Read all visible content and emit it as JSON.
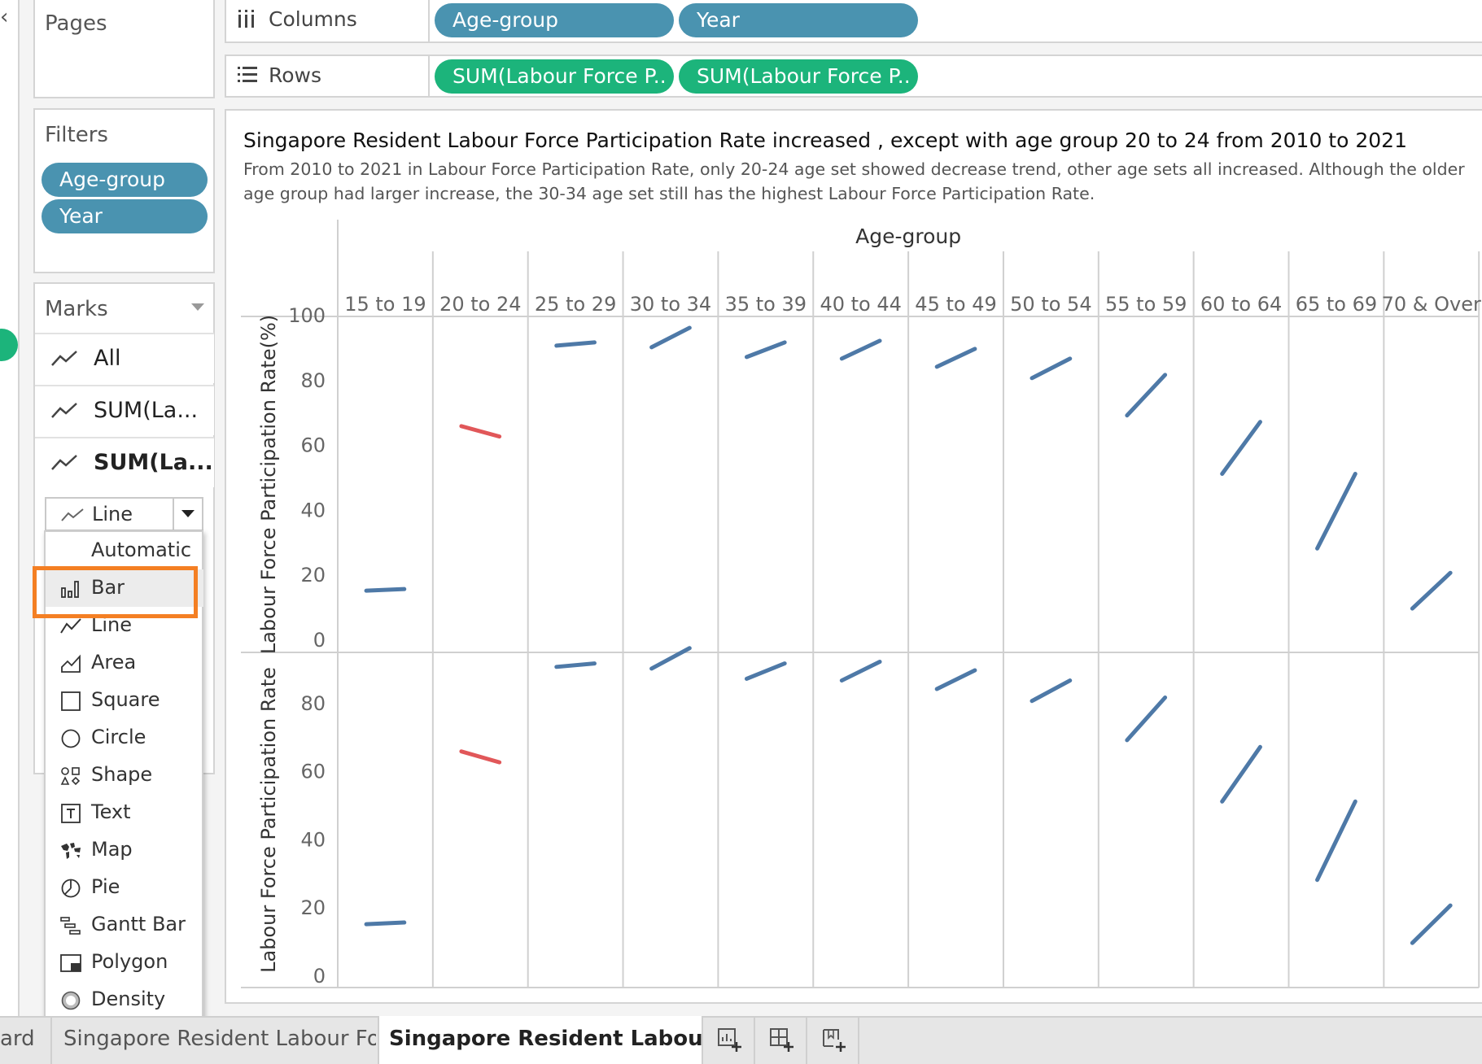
{
  "shelves": {
    "pages_label": "Pages",
    "columns_label": "Columns",
    "columns_pills": [
      "Age-group",
      "Year"
    ],
    "rows_label": "Rows",
    "rows_pills": [
      "SUM(Labour Force P..",
      "SUM(Labour Force P.."
    ]
  },
  "filters": {
    "label": "Filters",
    "pills": [
      "Age-group",
      "Year"
    ]
  },
  "marks": {
    "label": "Marks",
    "cards": [
      "All",
      "SUM(La...",
      "SUM(La..."
    ],
    "mark_type": "Line",
    "dropdown_items": [
      {
        "label": "Automatic",
        "icon": "none-icon"
      },
      {
        "label": "Bar",
        "icon": "bar-icon"
      },
      {
        "label": "Line",
        "icon": "line-icon"
      },
      {
        "label": "Area",
        "icon": "area-icon"
      },
      {
        "label": "Square",
        "icon": "square-icon"
      },
      {
        "label": "Circle",
        "icon": "circle-icon"
      },
      {
        "label": "Shape",
        "icon": "shape-icon"
      },
      {
        "label": "Text",
        "icon": "text-icon"
      },
      {
        "label": "Map",
        "icon": "map-icon"
      },
      {
        "label": "Pie",
        "icon": "pie-icon"
      },
      {
        "label": "Gantt Bar",
        "icon": "gantt-icon"
      },
      {
        "label": "Polygon",
        "icon": "polygon-icon"
      },
      {
        "label": "Density",
        "icon": "density-icon"
      }
    ],
    "highlighted": "Bar"
  },
  "viz": {
    "title": "Singapore Resident Labour Force Participation Rate  increased , except with age group 20 to 24 from 2010 to 2021",
    "subtitle_line1": "From 2010 to 2021 in Labour Force Participation Rate, only 20-24 age set showed decrease trend, other age sets all  increased. Although the older",
    "subtitle_line2": "age group had larger increase, the 30-34 age set still has the highest Labour Force Participation Rate."
  },
  "chart_data": {
    "type": "line",
    "column_header": "Age-group",
    "categories": [
      "15 to 19",
      "20 to 24",
      "25 to 29",
      "30 to 34",
      "35 to 39",
      "40 to 44",
      "45 to 49",
      "50 to 54",
      "55 to 59",
      "60 to 64",
      "65 to 69",
      "70 & Over"
    ],
    "x": [
      "2010",
      "2021"
    ],
    "panes": [
      {
        "ylabel": "Labour Force Participation Rate(%)",
        "yticks": [
          0,
          20,
          40,
          60,
          80,
          100
        ],
        "ylim": [
          -1,
          100
        ],
        "series": [
          [
            15,
            15.5
          ],
          [
            65.7,
            62.5
          ],
          [
            90.5,
            91.5
          ],
          [
            90,
            96
          ],
          [
            87,
            91.5
          ],
          [
            86.5,
            92
          ],
          [
            84,
            89.5
          ],
          [
            80.5,
            86.5
          ],
          [
            69,
            81.5
          ],
          [
            51,
            67
          ],
          [
            28,
            51
          ],
          [
            9.5,
            20.5
          ]
        ]
      },
      {
        "ylabel": "Labour Force Participation Rate",
        "yticks": [
          0,
          20,
          40,
          60,
          80
        ],
        "ylim": [
          -1,
          96
        ],
        "series": [
          [
            15,
            15.5
          ],
          [
            65.7,
            62.5
          ],
          [
            90.5,
            91.5
          ],
          [
            90,
            96
          ],
          [
            87,
            91.5
          ],
          [
            86.5,
            92
          ],
          [
            84,
            89.5
          ],
          [
            80.5,
            86.5
          ],
          [
            69,
            81.5
          ],
          [
            51,
            67
          ],
          [
            28,
            51
          ],
          [
            9.5,
            20.5
          ]
        ]
      }
    ],
    "colors": {
      "increase": "#4e79a7",
      "decrease": "#e15759"
    }
  },
  "tabs": {
    "items": [
      "ard",
      "Singapore Resident Labour Forc...",
      "Singapore Resident Labour For..."
    ],
    "active": 2
  },
  "colors": {
    "pill_blue": "#4a93b0",
    "pill_green": "#1cb47b",
    "highlight": "#f47f23"
  }
}
